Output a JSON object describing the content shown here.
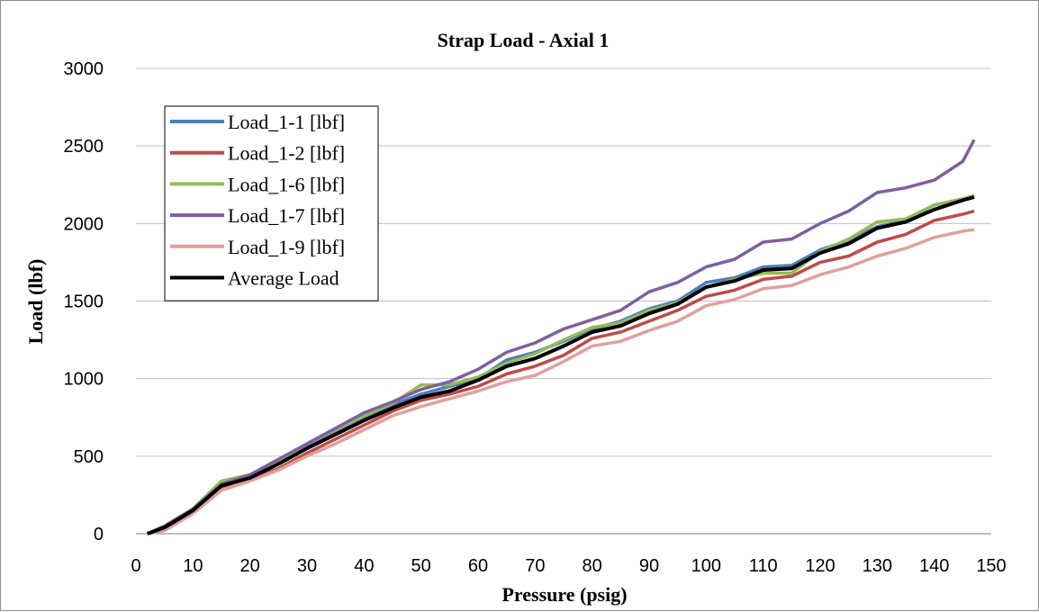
{
  "chart_data": {
    "type": "line",
    "title": "Strap Load - Axial 1",
    "xlabel": "Pressure (psig)",
    "ylabel": "Load (lbf)",
    "xlim": [
      0,
      150
    ],
    "ylim": [
      0,
      3000
    ],
    "x_ticks": [
      0,
      10,
      20,
      30,
      40,
      50,
      60,
      70,
      80,
      90,
      100,
      110,
      120,
      130,
      140,
      150
    ],
    "y_ticks": [
      0,
      500,
      1000,
      1500,
      2000,
      2500,
      3000
    ],
    "grid": "horizontal",
    "legend_position": "top-left",
    "series": [
      {
        "name": "Load_1-1 [lbf]",
        "color": "#4a7ebb",
        "x": [
          2,
          5,
          10,
          15,
          20,
          25,
          30,
          35,
          40,
          45,
          50,
          55,
          60,
          65,
          70,
          75,
          80,
          85,
          90,
          95,
          100,
          105,
          110,
          115,
          120,
          125,
          130,
          135,
          140,
          145,
          147
        ],
        "y": [
          0,
          40,
          150,
          310,
          360,
          460,
          560,
          650,
          750,
          830,
          900,
          950,
          1000,
          1120,
          1170,
          1240,
          1320,
          1370,
          1450,
          1500,
          1620,
          1650,
          1720,
          1730,
          1830,
          1890,
          1980,
          2020,
          2120,
          2150,
          2170
        ]
      },
      {
        "name": "Load_1-2 [lbf]",
        "color": "#be4b48",
        "x": [
          2,
          5,
          10,
          15,
          20,
          25,
          30,
          35,
          40,
          45,
          50,
          55,
          60,
          65,
          70,
          75,
          80,
          85,
          90,
          95,
          100,
          105,
          110,
          115,
          120,
          125,
          130,
          135,
          140,
          145,
          147
        ],
        "y": [
          0,
          30,
          140,
          290,
          350,
          420,
          520,
          610,
          700,
          790,
          860,
          900,
          950,
          1030,
          1080,
          1150,
          1260,
          1300,
          1370,
          1440,
          1530,
          1570,
          1640,
          1660,
          1750,
          1790,
          1880,
          1930,
          2020,
          2060,
          2080
        ]
      },
      {
        "name": "Load_1-6 [lbf]",
        "color": "#98b954",
        "x": [
          2,
          5,
          10,
          15,
          20,
          25,
          30,
          35,
          40,
          45,
          50,
          55,
          60,
          65,
          70,
          75,
          80,
          85,
          90,
          95,
          100,
          105,
          110,
          115,
          120,
          125,
          130,
          135,
          140,
          145,
          147
        ],
        "y": [
          0,
          45,
          160,
          340,
          380,
          470,
          580,
          670,
          760,
          840,
          960,
          960,
          1010,
          1100,
          1160,
          1250,
          1330,
          1360,
          1440,
          1490,
          1590,
          1640,
          1680,
          1680,
          1820,
          1900,
          2010,
          2030,
          2120,
          2160,
          2180
        ]
      },
      {
        "name": "Load_1-7 [lbf]",
        "color": "#7d60a0",
        "x": [
          2,
          5,
          10,
          15,
          20,
          25,
          30,
          35,
          40,
          45,
          50,
          55,
          60,
          65,
          70,
          75,
          80,
          85,
          90,
          95,
          100,
          105,
          110,
          115,
          120,
          125,
          130,
          135,
          140,
          145,
          147
        ],
        "y": [
          0,
          50,
          160,
          320,
          380,
          480,
          580,
          680,
          780,
          850,
          930,
          980,
          1060,
          1170,
          1230,
          1320,
          1380,
          1440,
          1560,
          1620,
          1720,
          1770,
          1880,
          1900,
          2000,
          2080,
          2200,
          2230,
          2280,
          2400,
          2540
        ]
      },
      {
        "name": "Load_1-9 [lbf]",
        "color": "#e0a09c",
        "x": [
          2,
          5,
          10,
          15,
          20,
          25,
          30,
          35,
          40,
          45,
          50,
          55,
          60,
          65,
          70,
          75,
          80,
          85,
          90,
          95,
          100,
          105,
          110,
          115,
          120,
          125,
          130,
          135,
          140,
          145,
          147
        ],
        "y": [
          0,
          20,
          130,
          280,
          340,
          410,
          500,
          580,
          670,
          760,
          820,
          870,
          920,
          980,
          1020,
          1110,
          1210,
          1240,
          1310,
          1370,
          1470,
          1510,
          1580,
          1600,
          1670,
          1720,
          1790,
          1840,
          1910,
          1950,
          1960
        ]
      },
      {
        "name": "Average Load",
        "color": "#000000",
        "x": [
          2,
          5,
          10,
          15,
          20,
          25,
          30,
          35,
          40,
          45,
          50,
          55,
          60,
          65,
          70,
          75,
          80,
          85,
          90,
          95,
          100,
          105,
          110,
          115,
          120,
          125,
          130,
          135,
          140,
          145,
          147
        ],
        "y": [
          0,
          40,
          150,
          310,
          360,
          450,
          550,
          640,
          730,
          810,
          880,
          920,
          990,
          1080,
          1130,
          1210,
          1300,
          1340,
          1420,
          1480,
          1590,
          1630,
          1700,
          1710,
          1810,
          1870,
          1970,
          2010,
          2090,
          2150,
          2170
        ]
      }
    ]
  }
}
